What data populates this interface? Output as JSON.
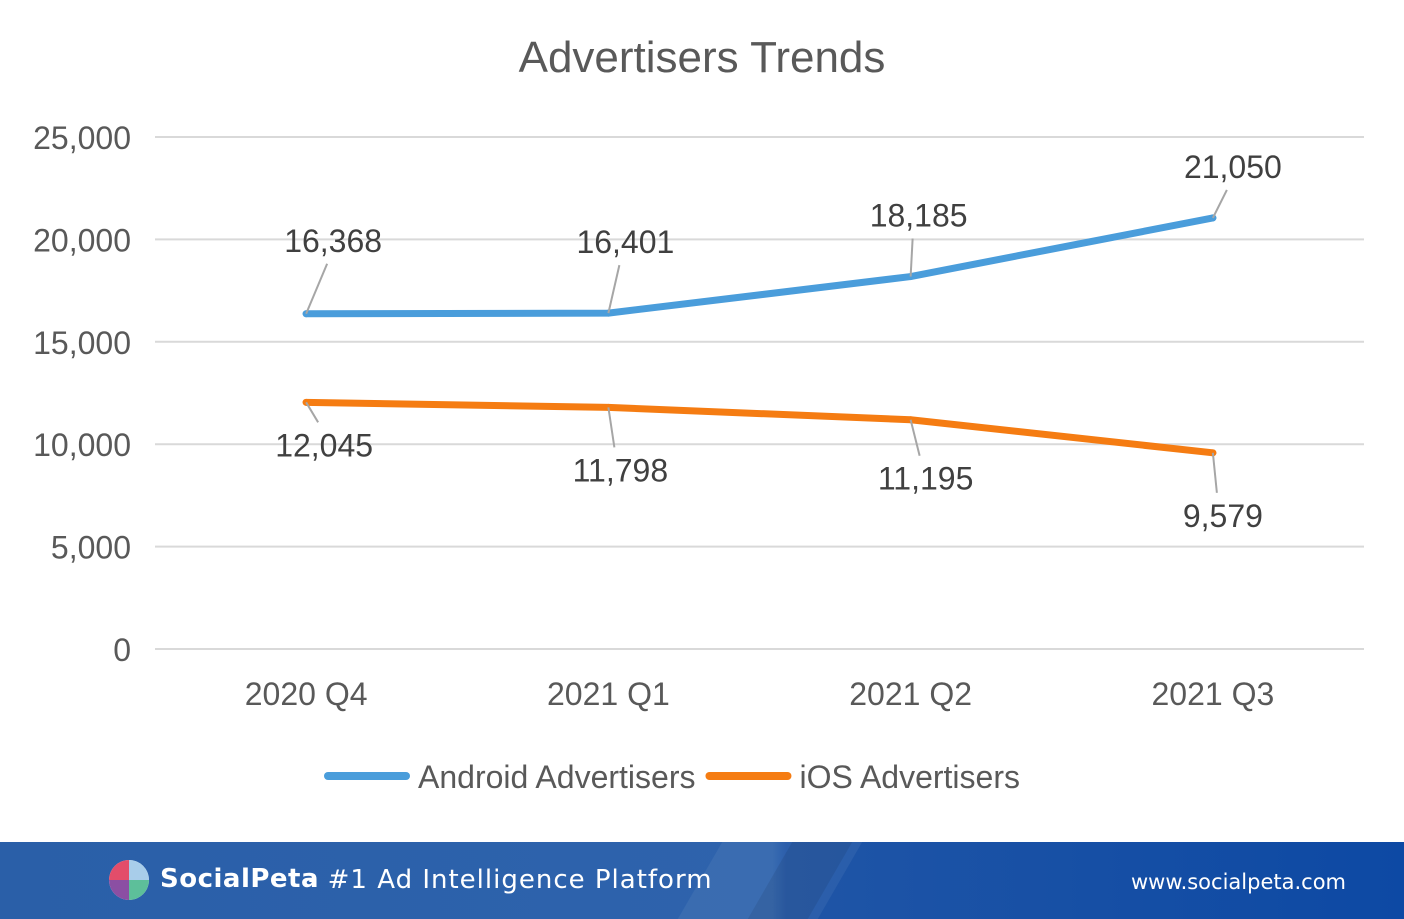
{
  "chart_data": {
    "type": "line",
    "title": "Advertisers Trends",
    "categories": [
      "2020 Q4",
      "2021 Q1",
      "2021 Q2",
      "2021 Q3"
    ],
    "ylim": [
      0,
      25000
    ],
    "y_ticks": [
      0,
      5000,
      10000,
      15000,
      20000,
      25000
    ],
    "y_tick_labels": [
      "0",
      "5,000",
      "10,000",
      "15,000",
      "20,000",
      "25,000"
    ],
    "grid": true,
    "legend_position": "bottom",
    "series": [
      {
        "name": "Android Advertisers",
        "color": "#4a9ddb",
        "values": [
          16368,
          16401,
          18185,
          21050
        ],
        "labels": [
          "16,368",
          "16,401",
          "18,185",
          "21,050"
        ]
      },
      {
        "name": "iOS Advertisers",
        "color": "#f57c12",
        "values": [
          12045,
          11798,
          11195,
          9579
        ],
        "labels": [
          "12,045",
          "11,798",
          "11,195",
          "9,579"
        ]
      }
    ]
  },
  "footer": {
    "brand": "SocialPeta",
    "tagline": "- #1 Ad Intelligence Platform",
    "website": "www.socialpeta.com",
    "background_color": "#2a5fa8",
    "logo_icon": "socialpeta-logo-icon"
  }
}
